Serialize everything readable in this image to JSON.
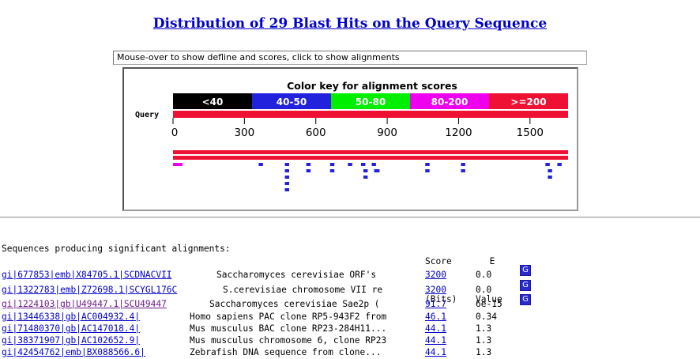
{
  "title": "Distribution of 29 Blast Hits on the Query Sequence",
  "hover_text": "Mouse-over to show defline and scores, click to show alignments",
  "graph": {
    "key_title": "Color key for alignment scores",
    "query_label": "Query",
    "key": [
      {
        "label": "<40",
        "color": "#000000"
      },
      {
        "label": "40-50",
        "color": "#2222dd"
      },
      {
        "label": "50-80",
        "color": "#00ee00"
      },
      {
        "label": "80-200",
        "color": "#ee00ee"
      },
      {
        "label": ">=200",
        "color": "#ee1133"
      }
    ],
    "axis_max": 1650,
    "ticks": [
      0,
      300,
      600,
      900,
      1200,
      1500
    ],
    "hits": [
      {
        "start": 0,
        "end": 1660,
        "row": 0,
        "color": "#ee1133"
      },
      {
        "start": 0,
        "end": 1660,
        "row": 1,
        "color": "#ee1133"
      },
      {
        "start": 0,
        "end": 40,
        "row": 2,
        "color": "#ee00ee"
      },
      {
        "start": 360,
        "end": 378,
        "row": 2,
        "color": "#2222dd"
      },
      {
        "start": 470,
        "end": 488,
        "row": 2,
        "color": "#2222dd"
      },
      {
        "start": 470,
        "end": 488,
        "row": 3,
        "color": "#2222dd"
      },
      {
        "start": 470,
        "end": 488,
        "row": 4,
        "color": "#2222dd"
      },
      {
        "start": 470,
        "end": 488,
        "row": 5,
        "color": "#2222dd"
      },
      {
        "start": 470,
        "end": 488,
        "row": 6,
        "color": "#2222dd"
      },
      {
        "start": 560,
        "end": 578,
        "row": 2,
        "color": "#2222dd"
      },
      {
        "start": 560,
        "end": 578,
        "row": 3,
        "color": "#2222dd"
      },
      {
        "start": 660,
        "end": 678,
        "row": 2,
        "color": "#2222dd"
      },
      {
        "start": 660,
        "end": 678,
        "row": 3,
        "color": "#2222dd"
      },
      {
        "start": 735,
        "end": 753,
        "row": 2,
        "color": "#2222dd"
      },
      {
        "start": 790,
        "end": 808,
        "row": 2,
        "color": "#2222dd"
      },
      {
        "start": 800,
        "end": 818,
        "row": 3,
        "color": "#2222dd"
      },
      {
        "start": 800,
        "end": 818,
        "row": 4,
        "color": "#2222dd"
      },
      {
        "start": 835,
        "end": 853,
        "row": 2,
        "color": "#2222dd"
      },
      {
        "start": 845,
        "end": 868,
        "row": 3,
        "color": "#2222dd"
      },
      {
        "start": 1060,
        "end": 1078,
        "row": 2,
        "color": "#2222dd"
      },
      {
        "start": 1060,
        "end": 1078,
        "row": 3,
        "color": "#2222dd"
      },
      {
        "start": 1210,
        "end": 1228,
        "row": 2,
        "color": "#2222dd"
      },
      {
        "start": 1210,
        "end": 1228,
        "row": 3,
        "color": "#2222dd"
      },
      {
        "start": 1565,
        "end": 1583,
        "row": 2,
        "color": "#2222dd"
      },
      {
        "start": 1575,
        "end": 1593,
        "row": 3,
        "color": "#2222dd"
      },
      {
        "start": 1575,
        "end": 1593,
        "row": 4,
        "color": "#2222dd"
      },
      {
        "start": 1615,
        "end": 1633,
        "row": 2,
        "color": "#2222dd"
      }
    ]
  },
  "results": {
    "header_score_1": "Score",
    "header_score_2": "(Bits)",
    "header_e_1": "E",
    "header_e_2": "Value",
    "heading": "Sequences producing significant alignments:",
    "g_label": "G",
    "rows": [
      {
        "id": "gi|677853|emb|X84705.1|SCDNACVII",
        "desc": "Saccharomyces cerevisiae ORF's",
        "score": "3200",
        "evalue": "0.0",
        "has_g": true,
        "visited": false
      },
      {
        "id": "gi|1322783|emb|Z72698.1|SCYGL176C",
        "desc": "S.cerevisiae chromosome VII re",
        "score": "3200",
        "evalue": "0.0",
        "has_g": true,
        "visited": false
      },
      {
        "id": "gi|1224103|gb|U49447.1|SCU49447",
        "desc": "Saccharomyces cerevisiae Sae2p (",
        "score": "91.7",
        "evalue": "6e-15",
        "has_g": true,
        "visited": true
      },
      {
        "id": "gi|13446338|gb|AC004932.4|",
        "desc": "Homo sapiens PAC clone RP5-943F2 from",
        "score": "46.1",
        "evalue": "0.34",
        "has_g": false,
        "visited": false
      },
      {
        "id": "gi|71480370|gb|AC147018.4|",
        "desc": "Mus musculus BAC clone RP23-284H11...",
        "score": "44.1",
        "evalue": "1.3",
        "has_g": false,
        "visited": false
      },
      {
        "id": "gi|38371907|gb|AC102652.9|",
        "desc": "Mus musculus chromosome 6, clone RP23",
        "score": "44.1",
        "evalue": "1.3",
        "has_g": false,
        "visited": false
      },
      {
        "id": "gi|42454762|emb|BX088566.6|",
        "desc": "Zebrafish DNA sequence from clone...",
        "score": "44.1",
        "evalue": "1.3",
        "has_g": false,
        "visited": false
      }
    ]
  }
}
